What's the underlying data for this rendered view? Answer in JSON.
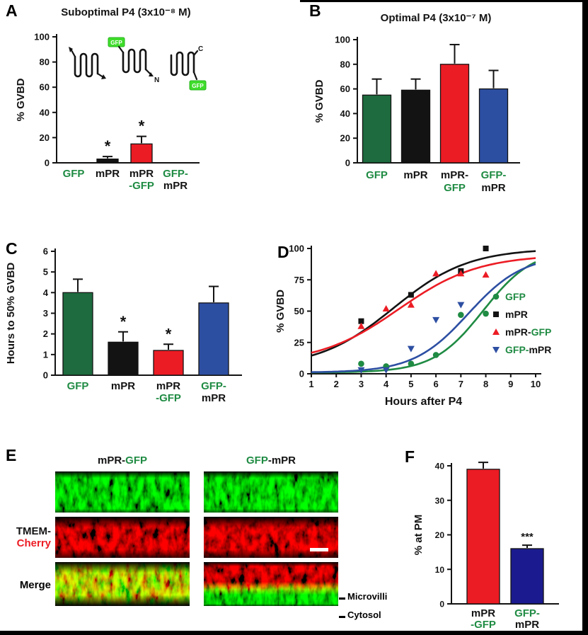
{
  "colors": {
    "green": "#1f8b43",
    "green_bar": "#1d6b3e",
    "black": "#131313",
    "red": "#ec1c24",
    "blue": "#2d4fa2",
    "navy": "#1b1b8f",
    "gfp_box": "#3fdd2b",
    "white": "#ffffff"
  },
  "panels": {
    "a": "A",
    "b": "B",
    "c": "C",
    "d": "D",
    "e": "E",
    "f": "F"
  },
  "cartoons": {
    "gfp": "GFP",
    "n_terminus": "N",
    "c_terminus": "C"
  },
  "chart_data": [
    {
      "panel": "A",
      "type": "bar",
      "title": "Suboptimal P4 (3x10⁻⁸ M)",
      "ylabel": "% GVBD",
      "ylim": [
        0,
        100
      ],
      "yticks": [
        0,
        20,
        40,
        60,
        80,
        100
      ],
      "categories": [
        "GFP",
        "mPR",
        "mPR-GFP",
        "GFP-mPR"
      ],
      "values": [
        0,
        3,
        15,
        0
      ],
      "errors": [
        0,
        2,
        6,
        0
      ],
      "sig": [
        "",
        "*",
        "*",
        ""
      ],
      "bar_colors": [
        "green_bar",
        "black",
        "red",
        "blue"
      ],
      "labels": [
        [
          [
            {
              "t": "GFP",
              "c": "green"
            }
          ]
        ],
        [
          [
            {
              "t": "mPR",
              "c": "black"
            }
          ]
        ],
        [
          [
            {
              "t": "mPR",
              "c": "black"
            }
          ],
          [
            {
              "t": "-GFP",
              "c": "green"
            }
          ]
        ],
        [
          [
            {
              "t": "GFP-",
              "c": "green"
            }
          ],
          [
            {
              "t": "mPR",
              "c": "black"
            }
          ]
        ]
      ]
    },
    {
      "panel": "B",
      "type": "bar",
      "title": "Optimal P4 (3x10⁻⁷ M)",
      "ylabel": "% GVBD",
      "ylim": [
        0,
        100
      ],
      "yticks": [
        0,
        20,
        40,
        60,
        80,
        100
      ],
      "categories": [
        "GFP",
        "mPR",
        "mPR-GFP",
        "GFP-mPR"
      ],
      "values": [
        55,
        59,
        80,
        60
      ],
      "errors": [
        13,
        9,
        16,
        15
      ],
      "sig": [
        "",
        "",
        "",
        ""
      ],
      "bar_colors": [
        "green_bar",
        "black",
        "red",
        "blue"
      ],
      "labels": [
        [
          [
            {
              "t": "GFP",
              "c": "green"
            }
          ]
        ],
        [
          [
            {
              "t": "mPR",
              "c": "black"
            }
          ]
        ],
        [
          [
            {
              "t": "mPR-",
              "c": "black"
            }
          ],
          [
            {
              "t": "GFP",
              "c": "green"
            }
          ]
        ],
        [
          [
            {
              "t": "GFP-",
              "c": "green"
            }
          ],
          [
            {
              "t": "mPR",
              "c": "black"
            }
          ]
        ]
      ]
    },
    {
      "panel": "C",
      "type": "bar",
      "title": "",
      "ylabel": "Hours to 50% GVBD",
      "ylim": [
        0,
        6
      ],
      "yticks": [
        0,
        1,
        2,
        3,
        4,
        5,
        6
      ],
      "categories": [
        "GFP",
        "mPR",
        "mPR-GFP",
        "GFP-mPR"
      ],
      "values": [
        4.0,
        1.6,
        1.2,
        3.5
      ],
      "errors": [
        0.65,
        0.5,
        0.3,
        0.8
      ],
      "sig": [
        "",
        "*",
        "*",
        ""
      ],
      "bar_colors": [
        "green_bar",
        "black",
        "red",
        "blue"
      ],
      "labels": [
        [
          [
            {
              "t": "GFP",
              "c": "green"
            }
          ]
        ],
        [
          [
            {
              "t": "mPR",
              "c": "black"
            }
          ]
        ],
        [
          [
            {
              "t": "mPR",
              "c": "black"
            }
          ],
          [
            {
              "t": "-GFP",
              "c": "green"
            }
          ]
        ],
        [
          [
            {
              "t": "GFP-",
              "c": "green"
            }
          ],
          [
            {
              "t": "mPR",
              "c": "black"
            }
          ]
        ]
      ]
    },
    {
      "panel": "D",
      "type": "line",
      "xlabel": "Hours after P4",
      "ylabel": "% GVBD",
      "xlim": [
        1,
        10
      ],
      "ylim": [
        0,
        100
      ],
      "xticks": [
        1,
        2,
        3,
        4,
        5,
        6,
        7,
        8,
        9,
        10
      ],
      "yticks": [
        0,
        25,
        50,
        75,
        100
      ],
      "series": [
        {
          "name": "GFP",
          "marker": "circle",
          "color": "green",
          "label": [
            {
              "t": "GFP",
              "c": "green"
            }
          ],
          "points": [
            [
              3,
              8
            ],
            [
              4,
              6
            ],
            [
              5,
              8
            ],
            [
              6,
              15
            ],
            [
              7,
              47
            ],
            [
              8,
              48
            ]
          ],
          "fit": {
            "bottom": 1,
            "top": 100,
            "mid": 7.9,
            "slope": 1.0
          }
        },
        {
          "name": "mPR",
          "marker": "square",
          "color": "black",
          "label": [
            {
              "t": "mPR",
              "c": "black"
            }
          ],
          "points": [
            [
              3,
              42
            ],
            [
              5,
              63
            ],
            [
              7,
              82
            ],
            [
              8,
              100
            ]
          ],
          "fit": {
            "bottom": 5,
            "top": 100,
            "mid": 4.3,
            "slope": 1.5
          }
        },
        {
          "name": "mPR-GFP",
          "marker": "triangle-up",
          "color": "red",
          "label": [
            {
              "t": "mPR-",
              "c": "black"
            },
            {
              "t": "GFP",
              "c": "green"
            }
          ],
          "points": [
            [
              3,
              38
            ],
            [
              4,
              52
            ],
            [
              5,
              55
            ],
            [
              6,
              80
            ],
            [
              7,
              80
            ],
            [
              8,
              79
            ]
          ],
          "fit": {
            "bottom": 8,
            "top": 95,
            "mid": 4.5,
            "slope": 1.6
          }
        },
        {
          "name": "GFP-mPR",
          "marker": "triangle-down",
          "color": "blue",
          "label": [
            {
              "t": "GFP-",
              "c": "green"
            },
            {
              "t": "mPR",
              "c": "black"
            }
          ],
          "points": [
            [
              3,
              3
            ],
            [
              4,
              3
            ],
            [
              5,
              20
            ],
            [
              6,
              43
            ],
            [
              7,
              55
            ]
          ],
          "fit": {
            "bottom": 1,
            "top": 95,
            "mid": 7.3,
            "slope": 1.1
          }
        }
      ]
    },
    {
      "panel": "F",
      "type": "bar",
      "title": "",
      "ylabel": "% at PM",
      "ylim": [
        0,
        40
      ],
      "yticks": [
        0,
        10,
        20,
        30,
        40
      ],
      "categories": [
        "mPR-GFP",
        "GFP-mPR"
      ],
      "values": [
        39,
        16
      ],
      "errors": [
        2,
        1
      ],
      "sig": [
        "",
        "***"
      ],
      "bar_colors": [
        "red",
        "navy"
      ],
      "labels": [
        [
          [
            {
              "t": "mPR",
              "c": "black"
            }
          ],
          [
            {
              "t": "-GFP",
              "c": "green"
            }
          ]
        ],
        [
          [
            {
              "t": "GFP-",
              "c": "green"
            }
          ],
          [
            {
              "t": "mPR",
              "c": "black"
            }
          ]
        ]
      ]
    }
  ],
  "panel_e": {
    "column_titles": [
      [
        {
          "t": "mPR-",
          "c": "black"
        },
        {
          "t": "GFP",
          "c": "green"
        }
      ],
      [
        {
          "t": "GFP",
          "c": "green"
        },
        {
          "t": "-mPR",
          "c": "black"
        }
      ]
    ],
    "row_label_tmem": [
      {
        "t": "TMEM-",
        "c": "black"
      },
      {
        "t": "Cherry",
        "c": "red"
      }
    ],
    "row_label_merge": "Merge",
    "annotations": [
      "Microvilli",
      "Cytosol"
    ]
  }
}
